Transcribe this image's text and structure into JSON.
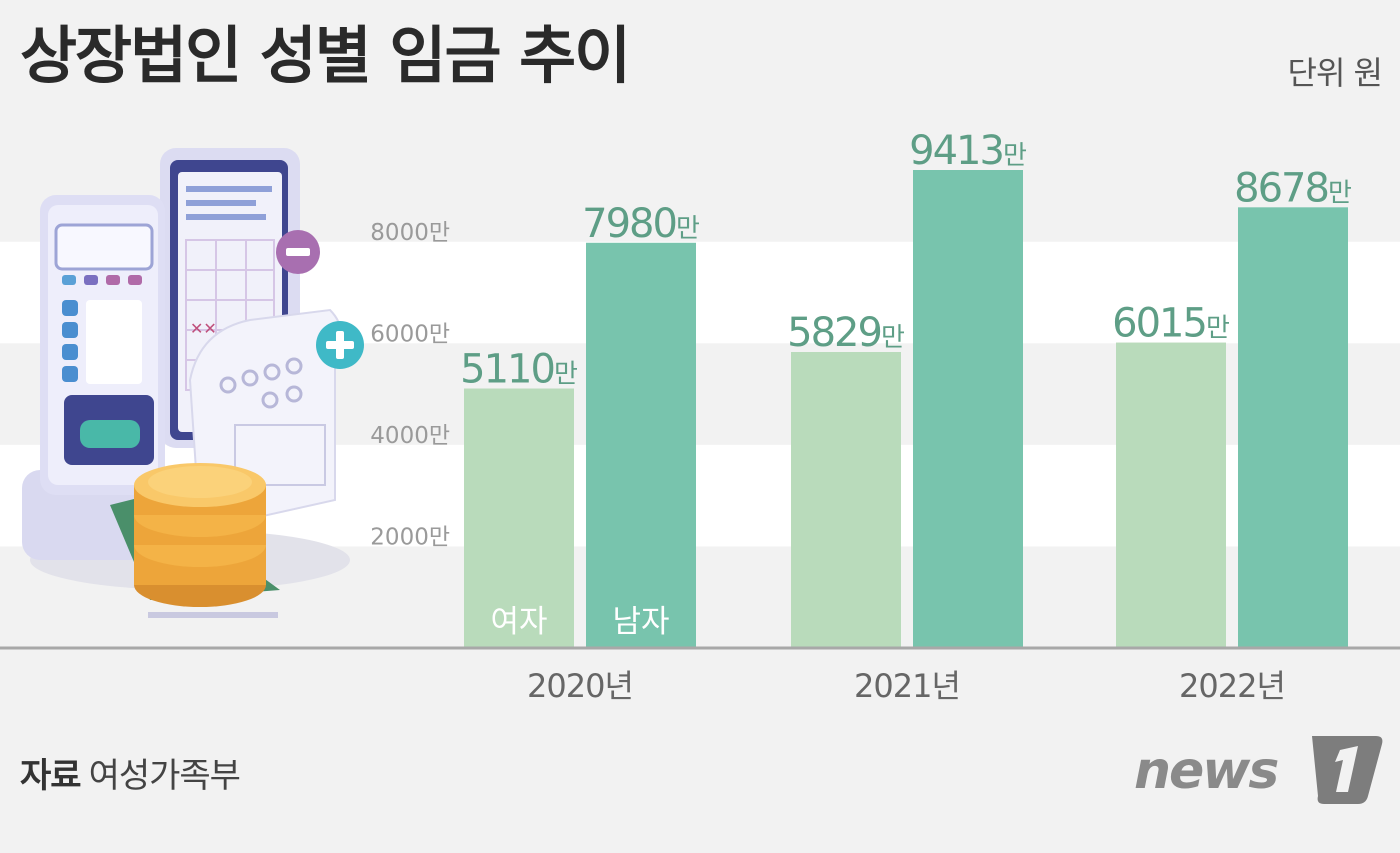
{
  "header": {
    "title": "상장법인 성별 임금 추이",
    "unit": "단위 원"
  },
  "footer": {
    "source_label": "자료",
    "source_value": "여성가족부",
    "logo_text": "news"
  },
  "colors": {
    "female": "#b9dbbb",
    "male": "#78c4ad",
    "label": "#5e9e86",
    "band": "#ffffff",
    "axis": "#a8a8a8"
  },
  "chart_data": {
    "type": "bar",
    "title": "상장법인 성별 임금 추이",
    "categories": [
      "2020년",
      "2021년",
      "2022년"
    ],
    "series": [
      {
        "name": "여자",
        "values": [
          5110,
          5829,
          6015
        ]
      },
      {
        "name": "남자",
        "values": [
          7980,
          9413,
          8678
        ]
      }
    ],
    "value_labels": [
      [
        "5110만",
        "5829만",
        "6015만"
      ],
      [
        "7980만",
        "9413만",
        "8678만"
      ]
    ],
    "yticks": [
      {
        "value": 2000,
        "label": "2000만"
      },
      {
        "value": 4000,
        "label": "4000만"
      },
      {
        "value": 6000,
        "label": "6000만"
      },
      {
        "value": 8000,
        "label": "8000만"
      }
    ],
    "ylim": [
      0,
      9413
    ],
    "xlabel": "",
    "ylabel": "",
    "grid": true,
    "legend": "inside-first-bars"
  }
}
